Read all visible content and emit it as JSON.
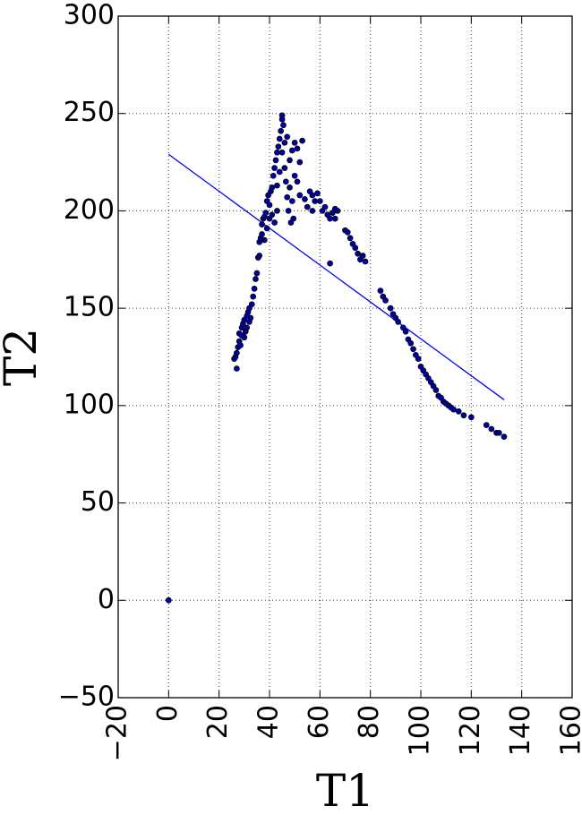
{
  "chart_data": {
    "type": "scatter",
    "title": "",
    "xlabel": "T1",
    "ylabel": "T2",
    "xlim": [
      -20,
      160
    ],
    "ylim": [
      -50,
      300
    ],
    "xticks": [
      -20,
      0,
      20,
      40,
      60,
      80,
      100,
      120,
      140,
      160
    ],
    "yticks": [
      -50,
      0,
      50,
      100,
      150,
      200,
      250,
      300
    ],
    "grid": true,
    "legend": "none",
    "colors": {
      "points": "#00009c",
      "fit_line": "#0000ee"
    },
    "series": [
      {
        "type": "scatter",
        "points": [
          [
            0,
            0
          ],
          [
            26,
            124
          ],
          [
            26.5,
            125
          ],
          [
            27,
            119
          ],
          [
            27,
            127
          ],
          [
            27.5,
            130
          ],
          [
            28,
            133
          ],
          [
            28,
            137
          ],
          [
            28.5,
            131
          ],
          [
            29,
            140
          ],
          [
            29,
            136
          ],
          [
            29.5,
            142
          ],
          [
            30,
            135
          ],
          [
            30,
            144
          ],
          [
            30.5,
            138
          ],
          [
            31,
            146
          ],
          [
            31,
            140
          ],
          [
            31.5,
            148
          ],
          [
            32,
            143
          ],
          [
            32,
            150
          ],
          [
            32.5,
            145
          ],
          [
            33,
            152
          ],
          [
            33.5,
            156
          ],
          [
            34,
            160
          ],
          [
            34.5,
            165
          ],
          [
            35,
            168
          ],
          [
            35.5,
            176
          ],
          [
            36,
            177
          ],
          [
            36,
            184
          ],
          [
            36.5,
            186
          ],
          [
            37,
            188
          ],
          [
            37,
            193
          ],
          [
            37.5,
            196
          ],
          [
            38,
            185
          ],
          [
            38,
            197
          ],
          [
            38.5,
            199
          ],
          [
            39,
            191
          ],
          [
            39,
            205
          ],
          [
            39.5,
            208
          ],
          [
            40,
            196
          ],
          [
            40,
            203
          ],
          [
            40.5,
            210
          ],
          [
            41,
            198
          ],
          [
            41,
            212
          ],
          [
            41.5,
            218
          ],
          [
            42,
            194
          ],
          [
            42,
            222
          ],
          [
            42.5,
            226
          ],
          [
            43,
            200
          ],
          [
            43,
            213
          ],
          [
            43,
            230
          ],
          [
            43.5,
            233
          ],
          [
            44,
            220
          ],
          [
            44,
            237
          ],
          [
            44.5,
            241
          ],
          [
            45,
            247
          ],
          [
            45,
            249
          ],
          [
            45.5,
            244
          ],
          [
            45,
            230
          ],
          [
            46,
            235
          ],
          [
            46,
            222
          ],
          [
            46.5,
            215
          ],
          [
            47,
            238
          ],
          [
            47,
            207
          ],
          [
            47.5,
            200
          ],
          [
            48,
            226
          ],
          [
            48,
            212
          ],
          [
            48.5,
            194
          ],
          [
            49,
            231
          ],
          [
            49,
            205
          ],
          [
            49.5,
            196
          ],
          [
            50,
            235
          ],
          [
            50,
            218
          ],
          [
            51,
            232
          ],
          [
            51,
            215
          ],
          [
            52,
            225
          ],
          [
            52,
            208
          ],
          [
            53,
            236
          ],
          [
            54,
            206
          ],
          [
            55,
            202
          ],
          [
            56,
            210
          ],
          [
            57,
            208
          ],
          [
            57,
            200
          ],
          [
            58,
            205
          ],
          [
            59,
            209
          ],
          [
            60,
            205
          ],
          [
            61,
            200
          ],
          [
            62,
            202
          ],
          [
            63,
            198
          ],
          [
            64,
            196
          ],
          [
            64,
            173
          ],
          [
            65,
            199
          ],
          [
            66,
            201
          ],
          [
            66,
            196
          ],
          [
            67,
            200
          ],
          [
            70,
            190
          ],
          [
            71,
            189
          ],
          [
            72,
            186
          ],
          [
            73,
            183
          ],
          [
            74,
            181
          ],
          [
            75,
            178
          ],
          [
            76,
            175
          ],
          [
            77,
            177
          ],
          [
            78,
            174
          ],
          [
            84,
            159
          ],
          [
            85,
            156
          ],
          [
            86,
            154
          ],
          [
            88,
            150
          ],
          [
            89,
            147
          ],
          [
            90,
            145
          ],
          [
            91,
            143
          ],
          [
            93,
            140
          ],
          [
            94,
            138
          ],
          [
            95,
            134
          ],
          [
            96,
            132
          ],
          [
            97,
            129
          ],
          [
            98,
            126
          ],
          [
            99,
            124
          ],
          [
            100,
            120
          ],
          [
            101,
            118
          ],
          [
            102,
            116
          ],
          [
            103,
            114
          ],
          [
            104,
            112
          ],
          [
            105,
            110
          ],
          [
            106,
            108
          ],
          [
            107,
            105
          ],
          [
            108,
            104
          ],
          [
            109,
            102
          ],
          [
            110,
            101
          ],
          [
            111,
            100
          ],
          [
            112,
            99
          ],
          [
            113,
            98
          ],
          [
            115,
            97
          ],
          [
            117,
            95
          ],
          [
            120,
            94
          ],
          [
            126,
            90
          ],
          [
            128,
            88
          ],
          [
            130,
            86
          ],
          [
            131,
            86
          ],
          [
            133,
            84
          ]
        ]
      },
      {
        "type": "line",
        "points": [
          [
            0,
            229
          ],
          [
            133,
            103
          ]
        ]
      }
    ]
  }
}
